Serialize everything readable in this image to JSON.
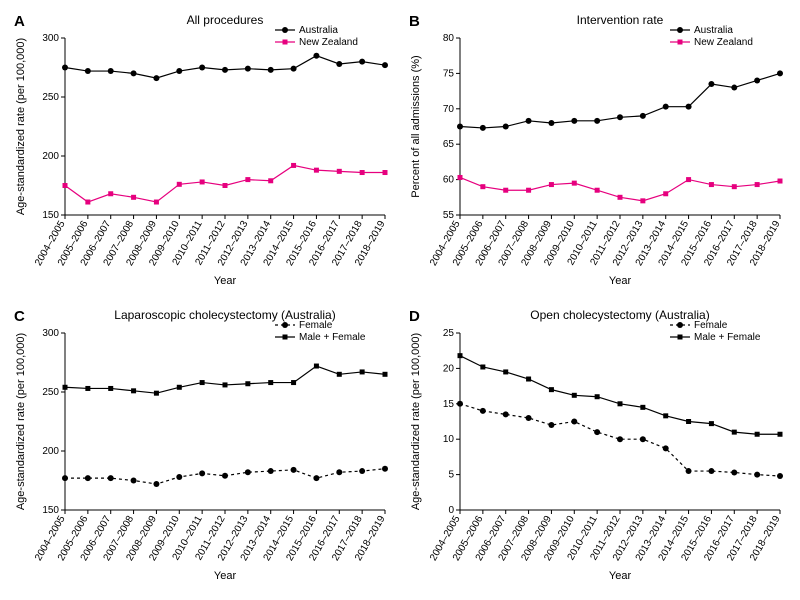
{
  "years": [
    "2004–2005",
    "2005–2006",
    "2006–2007",
    "2007–2008",
    "2008–2009",
    "2009–2010",
    "2010–2011",
    "2011–2012",
    "2012–2013",
    "2013–2014",
    "2014–2015",
    "2015–2016",
    "2016–2017",
    "2017–2018",
    "2018–2019"
  ],
  "xlabel": "Year",
  "panels": {
    "A": {
      "letter": "A",
      "title": "All procedures",
      "ylabel": "Age-standardized rate (per 100,000)",
      "ylim": [
        150,
        300
      ],
      "ytick_step": 50,
      "series": [
        {
          "name": "Australia",
          "color": "#000000",
          "marker": "circle",
          "dash": "solid",
          "values": [
            275,
            272,
            272,
            270,
            266,
            272,
            275,
            273,
            274,
            273,
            274,
            285,
            278,
            280,
            277
          ]
        },
        {
          "name": "New Zealand",
          "color": "#e6007e",
          "marker": "square",
          "dash": "solid",
          "values": [
            175,
            161,
            168,
            165,
            161,
            176,
            178,
            175,
            180,
            179,
            192,
            188,
            187,
            186,
            186
          ]
        }
      ],
      "legend_pos": "top-right"
    },
    "B": {
      "letter": "B",
      "title": "Intervention rate",
      "ylabel": "Percent of all admissions (%)",
      "ylim": [
        55,
        80
      ],
      "ytick_step": 5,
      "series": [
        {
          "name": "Australia",
          "color": "#000000",
          "marker": "circle",
          "dash": "solid",
          "values": [
            67.5,
            67.3,
            67.5,
            68.3,
            68.0,
            68.3,
            68.3,
            68.8,
            69.0,
            70.3,
            70.3,
            73.5,
            73.0,
            74.0,
            75.0
          ]
        },
        {
          "name": "New Zealand",
          "color": "#e6007e",
          "marker": "square",
          "dash": "solid",
          "values": [
            60.3,
            59.0,
            58.5,
            58.5,
            59.3,
            59.5,
            58.5,
            57.5,
            57.0,
            58.0,
            60.0,
            59.3,
            59.0,
            59.3,
            59.8
          ]
        }
      ],
      "legend_pos": "top-right"
    },
    "C": {
      "letter": "C",
      "title": "Laparoscopic cholecystectomy (Australia)",
      "ylabel": "Age-standardized rate (per 100,000)",
      "ylim": [
        150,
        300
      ],
      "ytick_step": 50,
      "series": [
        {
          "name": "Female",
          "color": "#000000",
          "marker": "circle",
          "dash": "dashed",
          "values": [
            177,
            177,
            177,
            175,
            172,
            178,
            181,
            179,
            182,
            183,
            184,
            177,
            182,
            183,
            185
          ]
        },
        {
          "name": "Male + Female",
          "color": "#000000",
          "marker": "square",
          "dash": "solid",
          "values": [
            254,
            253,
            253,
            251,
            249,
            254,
            258,
            256,
            257,
            258,
            258,
            272,
            265,
            267,
            265
          ]
        }
      ],
      "legend_pos": "top-right"
    },
    "D": {
      "letter": "D",
      "title": "Open cholecystectomy (Australia)",
      "ylabel": "Age-standardized rate (per 100,000)",
      "ylim": [
        0,
        25
      ],
      "ytick_step": 5,
      "series": [
        {
          "name": "Female",
          "color": "#000000",
          "marker": "circle",
          "dash": "dashed",
          "values": [
            15.0,
            14.0,
            13.5,
            13.0,
            12.0,
            12.5,
            11.0,
            10.0,
            10.0,
            8.7,
            5.5,
            5.5,
            5.3,
            5.0,
            4.8
          ]
        },
        {
          "name": "Male + Female",
          "color": "#000000",
          "marker": "square",
          "dash": "solid",
          "values": [
            21.8,
            20.2,
            19.5,
            18.5,
            17.0,
            16.2,
            16.0,
            15.0,
            14.5,
            13.3,
            12.5,
            12.2,
            11.0,
            10.7,
            10.7
          ]
        }
      ],
      "legend_pos": "top-right"
    }
  },
  "styling": {
    "background": "#ffffff",
    "axis_color": "#000000",
    "tick_fontsize": 10,
    "label_fontsize": 11,
    "title_fontsize": 12,
    "letter_fontsize": 15,
    "legend_fontsize": 10,
    "line_width": 1.2,
    "marker_size": 3
  }
}
